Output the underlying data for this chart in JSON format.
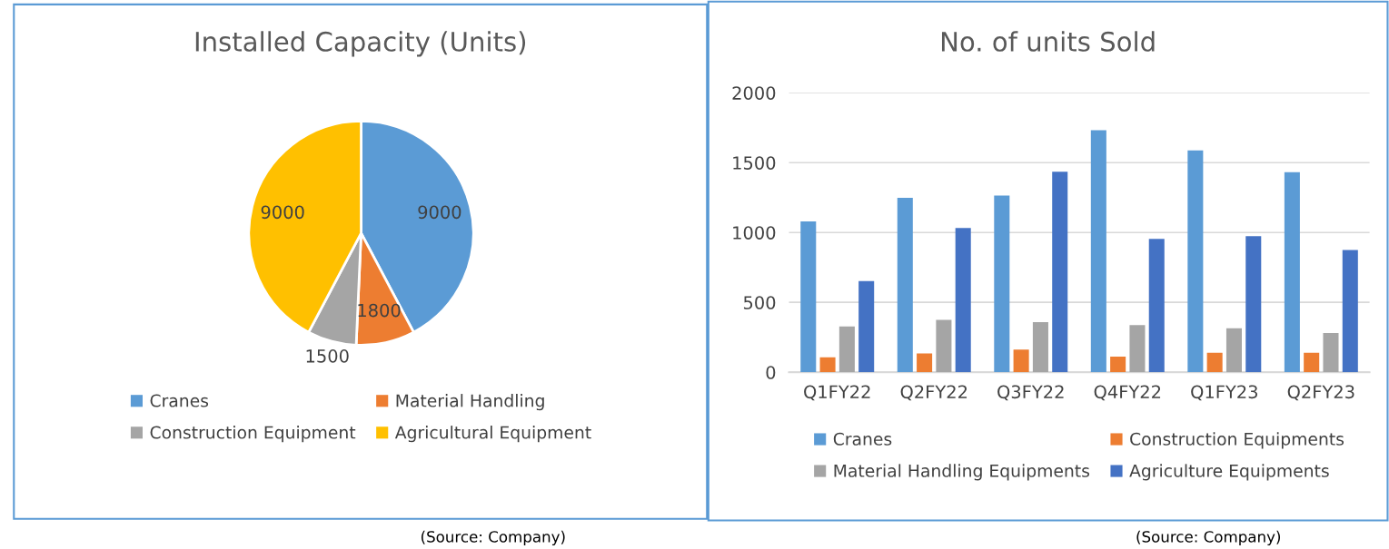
{
  "chart_data": [
    {
      "type": "pie",
      "title": "Installed Capacity (Units)",
      "categories": [
        "Cranes",
        "Material Handling",
        "Construction Equipment",
        "Agricultural Equipment"
      ],
      "values": [
        9000,
        1800,
        1500,
        9000
      ],
      "colors": [
        "#5b9bd5",
        "#ed7d31",
        "#a5a5a5",
        "#ffc000"
      ],
      "data_labels": true,
      "legend": "bottom",
      "annotations": [
        "(Source: Company)"
      ]
    },
    {
      "type": "bar",
      "title": "No. of units Sold",
      "categories": [
        "Q1FY22",
        "Q2FY22",
        "Q3FY22",
        "Q4FY22",
        "Q1FY23",
        "Q2FY23"
      ],
      "series": [
        {
          "name": "Cranes",
          "color": "#5b9bd5",
          "values": [
            1080,
            1248,
            1264,
            1732,
            1588,
            1432
          ]
        },
        {
          "name": "Construction Equipments",
          "color": "#ed7d31",
          "values": [
            106,
            134,
            162,
            112,
            140,
            140
          ]
        },
        {
          "name": "Material Handling Equipments",
          "color": "#a5a5a5",
          "values": [
            328,
            374,
            359,
            337,
            315,
            281
          ]
        },
        {
          "name": "Agriculture Equipments",
          "color": "#4472c4",
          "values": [
            652,
            1033,
            1435,
            955,
            973,
            874
          ]
        }
      ],
      "ylim": [
        0,
        2000
      ],
      "yticks": [
        0,
        500,
        1000,
        1500,
        2000
      ],
      "grid": "y",
      "legend": "bottom",
      "annotations": [
        "(Source: Company)"
      ]
    }
  ]
}
